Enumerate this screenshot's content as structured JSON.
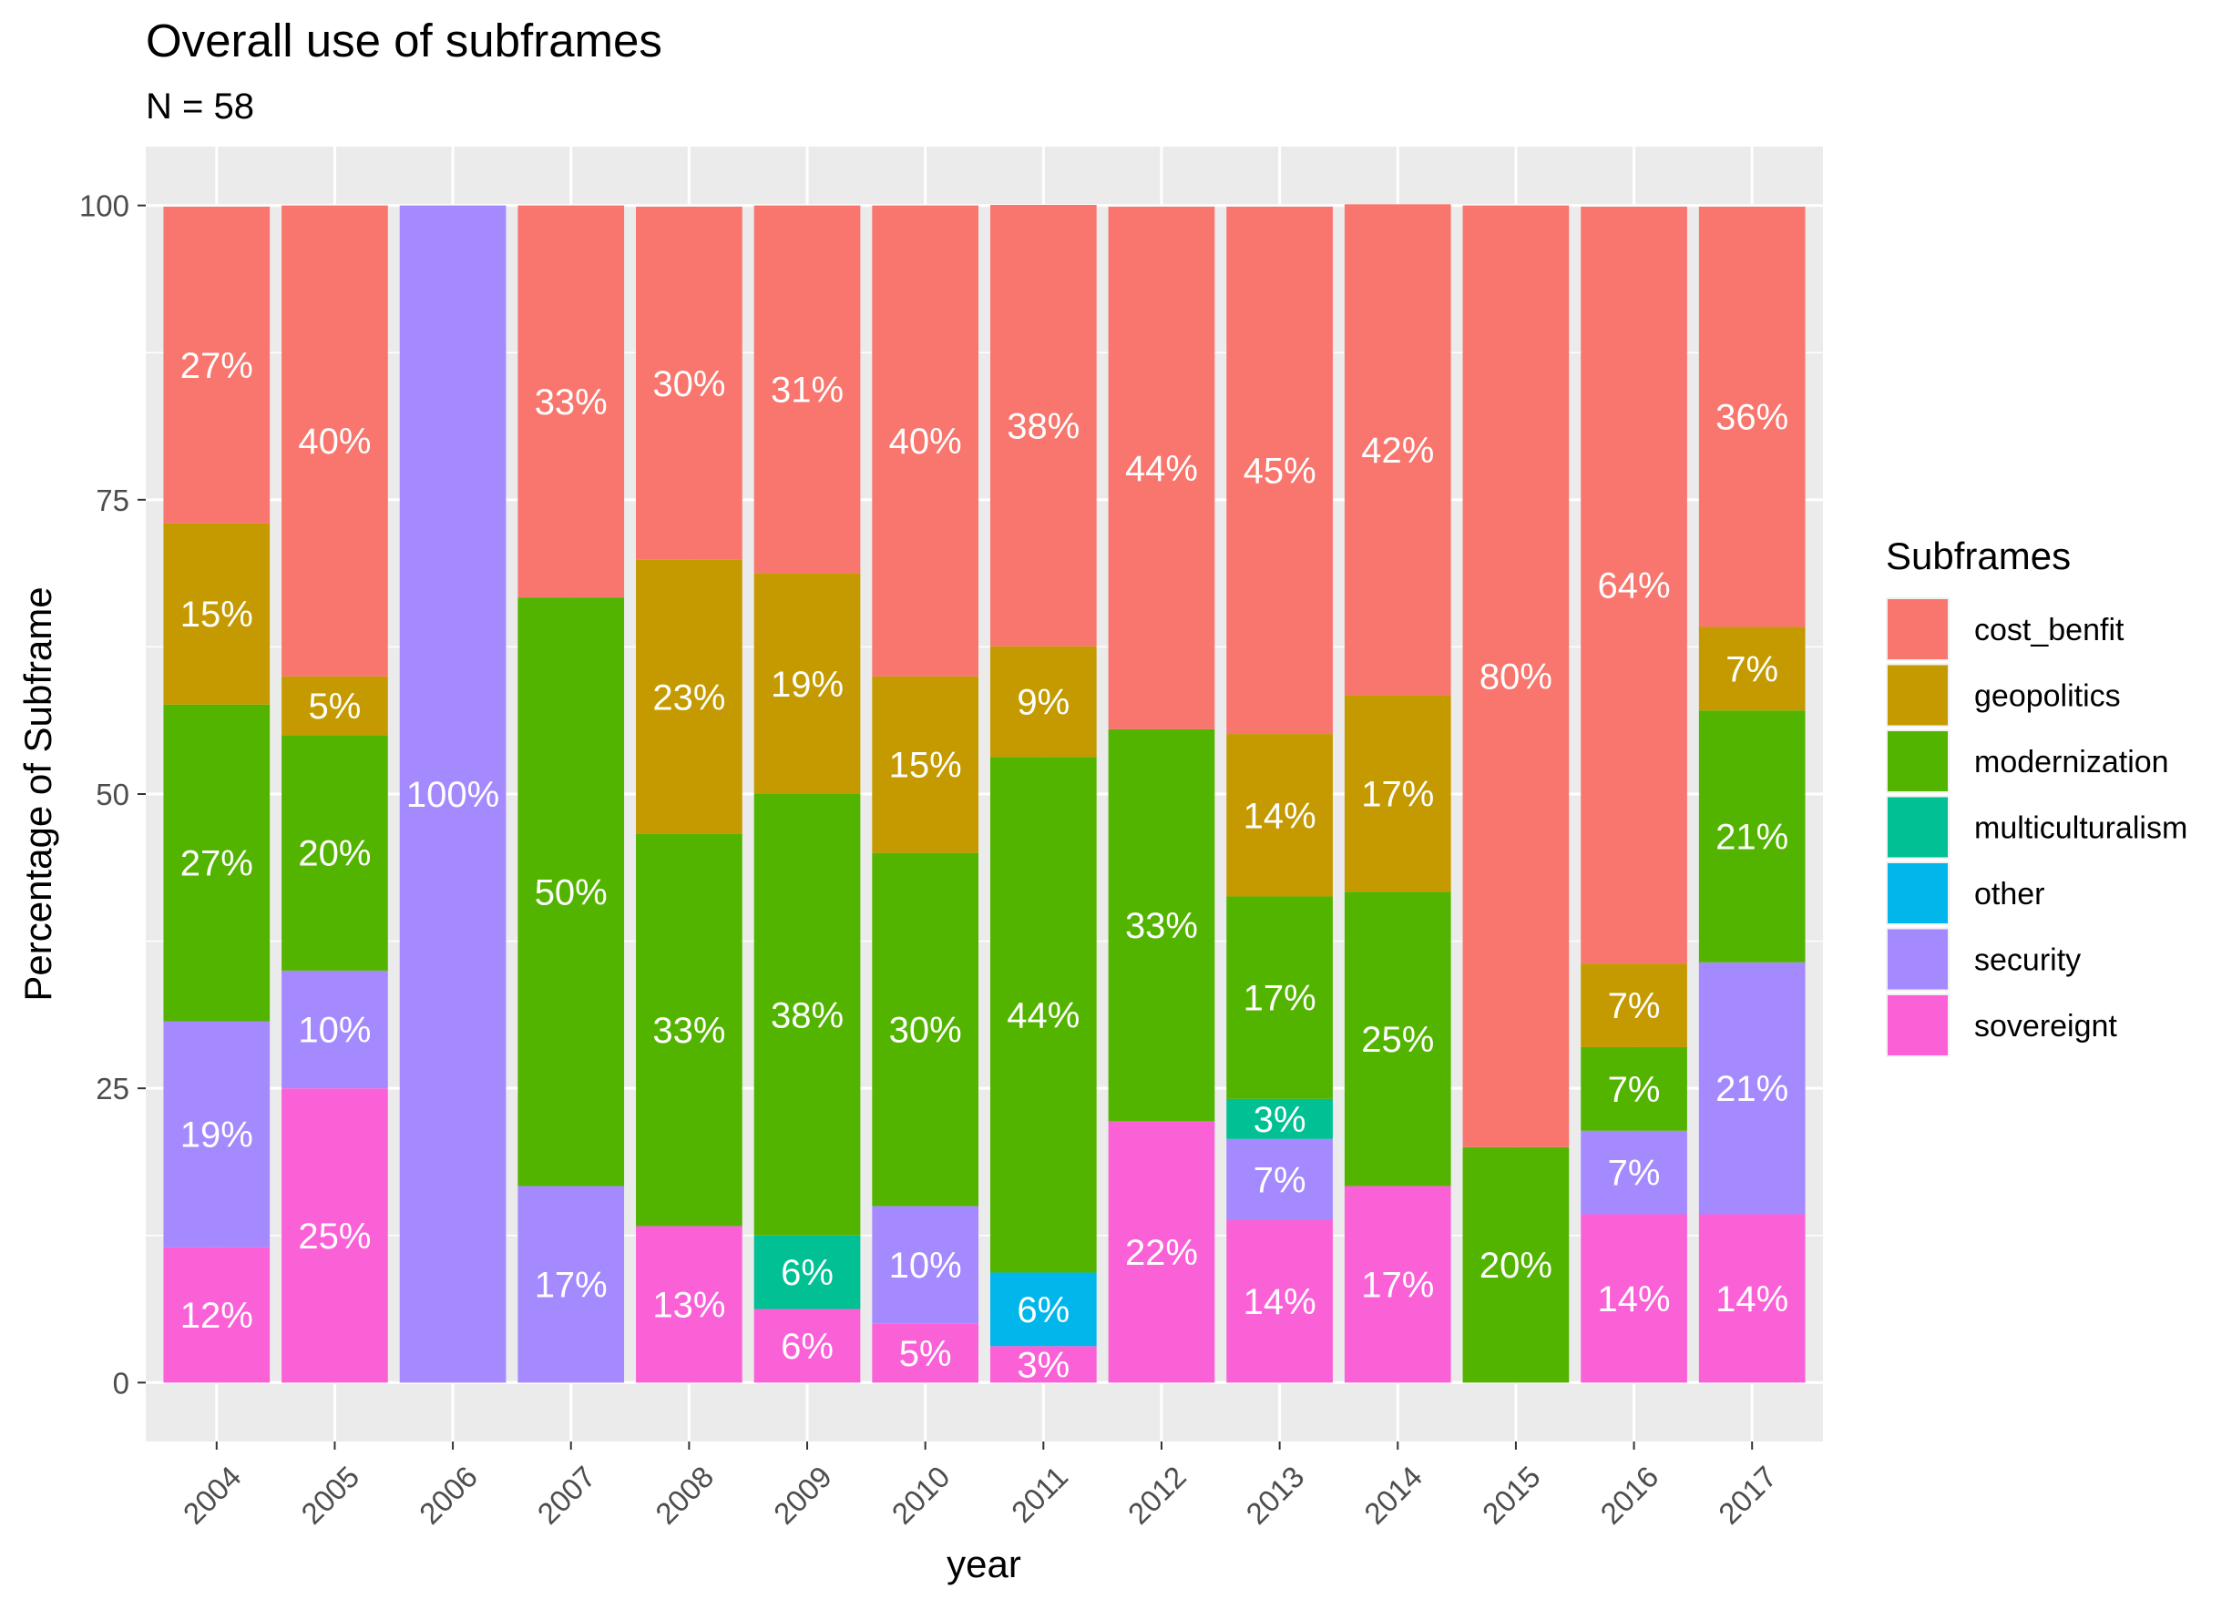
{
  "chart_data": {
    "type": "bar",
    "stacked": true,
    "title": "Overall use of subframes",
    "subtitle": "N = 58",
    "xlabel": "year",
    "ylabel": "Percentage of Subframe",
    "ylim": [
      -5,
      105
    ],
    "y_ticks": [
      0,
      25,
      50,
      75,
      100
    ],
    "y_tick_labels": [
      "0",
      "25",
      "50",
      "75",
      "100"
    ],
    "grid": true,
    "legend": {
      "title": "Subframes",
      "position": "right"
    },
    "categories": [
      "2004",
      "2005",
      "2006",
      "2007",
      "2008",
      "2009",
      "2010",
      "2011",
      "2012",
      "2013",
      "2014",
      "2015",
      "2016",
      "2017"
    ],
    "stack_order_bottom_to_top": [
      "sovereignt",
      "security",
      "other",
      "multiculturalism",
      "modernization",
      "geopolitics",
      "cost_benfit"
    ],
    "series": [
      {
        "name": "cost_benfit",
        "color": "#F8766D",
        "values": [
          26.9,
          40,
          0,
          33.3,
          30,
          31.25,
          40,
          37.5,
          44.4,
          44.8,
          41.7,
          80,
          64.3,
          35.7
        ],
        "labels": [
          "27%",
          "40%",
          "",
          "33%",
          "30%",
          "31%",
          "40%",
          "38%",
          "44%",
          "45%",
          "42%",
          "80%",
          "64%",
          "36%"
        ]
      },
      {
        "name": "geopolitics",
        "color": "#C49A00",
        "values": [
          15.4,
          5,
          0,
          0,
          23.3,
          18.75,
          15,
          9.4,
          0,
          13.8,
          16.7,
          0,
          7.1,
          7.1
        ],
        "labels": [
          "15%",
          "5%",
          "",
          "",
          "23%",
          "19%",
          "15%",
          "9%",
          "",
          "14%",
          "17%",
          "",
          "7%",
          "7%"
        ]
      },
      {
        "name": "modernization",
        "color": "#53B400",
        "values": [
          26.9,
          20,
          0,
          50,
          33.3,
          37.5,
          30,
          43.8,
          33.3,
          17.2,
          25,
          20,
          7.1,
          21.4
        ],
        "labels": [
          "27%",
          "20%",
          "",
          "50%",
          "33%",
          "38%",
          "30%",
          "44%",
          "33%",
          "17%",
          "25%",
          "20%",
          "7%",
          "21%"
        ]
      },
      {
        "name": "multiculturalism",
        "color": "#00C094",
        "values": [
          0,
          0,
          0,
          0,
          0,
          6.25,
          0,
          0,
          0,
          3.4,
          0,
          0,
          0,
          0
        ],
        "labels": [
          "",
          "",
          "",
          "",
          "",
          "6%",
          "",
          "",
          "",
          "3%",
          "",
          "",
          "",
          ""
        ]
      },
      {
        "name": "other",
        "color": "#00B6EB",
        "values": [
          0,
          0,
          0,
          0,
          0,
          0,
          0,
          6.25,
          0,
          0,
          0,
          0,
          0,
          0
        ],
        "labels": [
          "",
          "",
          "",
          "",
          "",
          "",
          "",
          "6%",
          "",
          "",
          "",
          "",
          "",
          ""
        ]
      },
      {
        "name": "security",
        "color": "#A58AFF",
        "values": [
          19.2,
          10,
          100,
          16.7,
          0,
          0,
          10,
          0,
          0,
          6.9,
          0,
          0,
          7.1,
          21.4
        ],
        "labels": [
          "19%",
          "10%",
          "100%",
          "17%",
          "",
          "",
          "10%",
          "",
          "",
          "7%",
          "",
          "",
          "7%",
          "21%"
        ]
      },
      {
        "name": "sovereignt",
        "color": "#FB61D7",
        "values": [
          11.5,
          25,
          0,
          0,
          13.3,
          6.25,
          5,
          3.1,
          22.2,
          13.8,
          16.7,
          0,
          14.3,
          14.3
        ],
        "labels": [
          "12%",
          "25%",
          "",
          "",
          "13%",
          "6%",
          "5%",
          "3%",
          "22%",
          "14%",
          "17%",
          "",
          "14%",
          "14%"
        ]
      }
    ]
  }
}
